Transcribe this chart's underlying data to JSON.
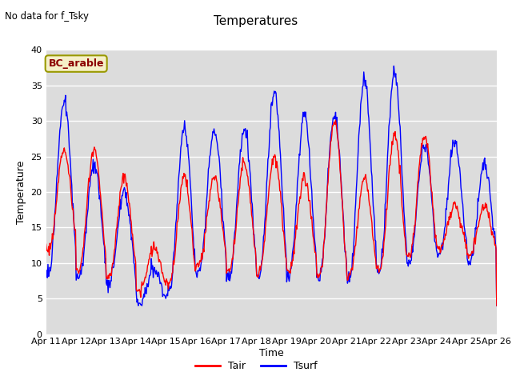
{
  "title": "Temperatures",
  "xlabel": "Time",
  "ylabel": "Temperature",
  "annotation": "No data for f_Tsky",
  "box_label": "BC_arable",
  "legend_tair": "Tair",
  "legend_tsurf": "Tsurf",
  "color_tair": "red",
  "color_tsurf": "blue",
  "ylim": [
    0,
    40
  ],
  "yticks": [
    0,
    5,
    10,
    15,
    20,
    25,
    30,
    35,
    40
  ],
  "bg_color": "#dcdcdc",
  "grid_color": "white",
  "tair_mins": [
    12,
    9,
    8,
    6,
    7,
    10,
    9,
    9,
    9,
    8,
    8,
    9,
    11,
    12,
    11
  ],
  "tair_maxs": [
    26,
    26,
    22,
    12,
    22,
    22,
    24,
    25,
    22,
    30,
    22,
    28,
    28,
    18,
    18
  ],
  "tsurf_mins": [
    9,
    8,
    7,
    4,
    6,
    9,
    8,
    8,
    8,
    8,
    8,
    9,
    10,
    11,
    10
  ],
  "tsurf_maxs": [
    33,
    24,
    20,
    9,
    29,
    29,
    29,
    34,
    31,
    31,
    36,
    37,
    27,
    27,
    24
  ]
}
